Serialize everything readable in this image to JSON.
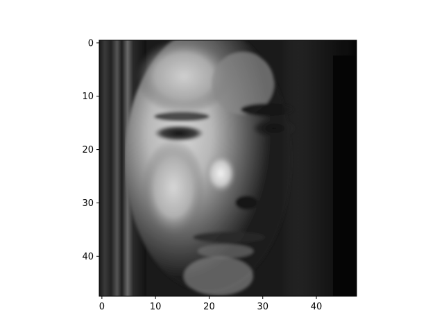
{
  "chart_data": {
    "type": "heatmap",
    "title": "",
    "xlabel": "",
    "ylabel": "",
    "colormap": "gray",
    "image_shape": [
      48,
      48
    ],
    "xlim": [
      -0.5,
      47.5
    ],
    "ylim": [
      47.5,
      -0.5
    ],
    "x_ticks": [
      0,
      10,
      20,
      30,
      40
    ],
    "y_ticks": [
      0,
      10,
      20,
      30,
      40
    ],
    "x_tick_labels": [
      "0",
      "10",
      "20",
      "30",
      "40"
    ],
    "y_tick_labels": [
      "0",
      "10",
      "20",
      "30",
      "40"
    ],
    "grid": false,
    "content_description": "48x48 grayscale photograph of a face (three-quarter view), dark hair on sides, lit left cheek and nose"
  }
}
